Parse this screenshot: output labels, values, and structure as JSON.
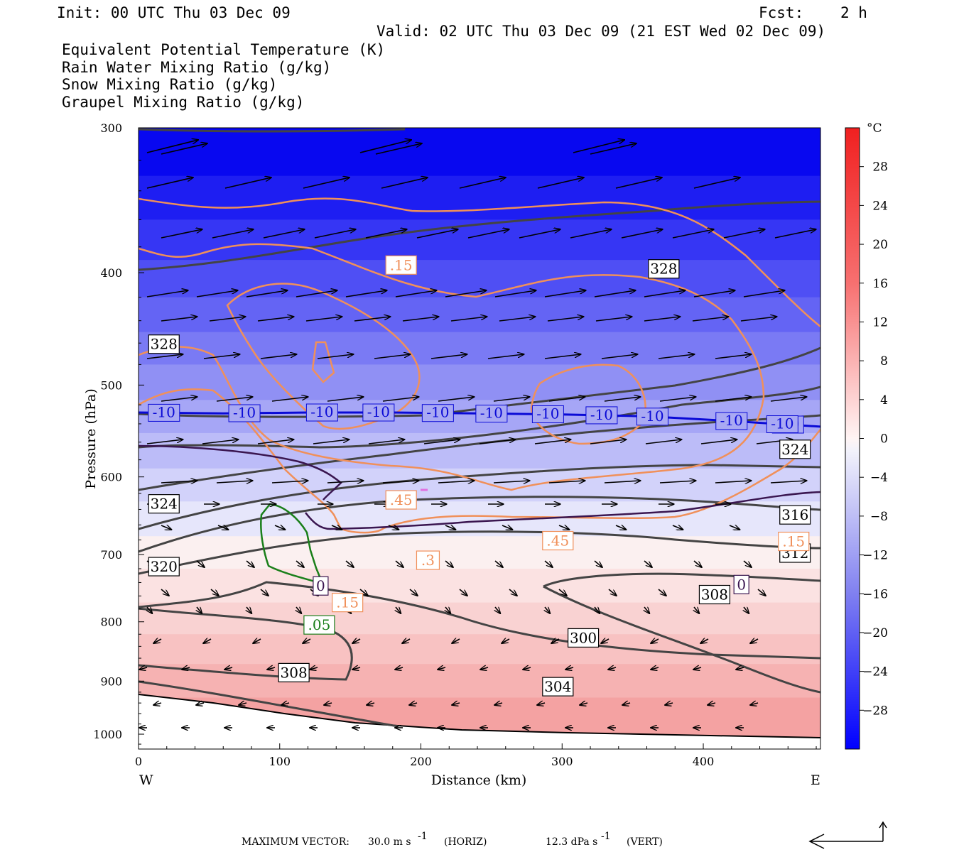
{
  "header": {
    "init": "Init: 00 UTC Thu 03 Dec 09",
    "fcst_label": "Fcst:",
    "fcst_value": "2 h",
    "valid": "Valid: 02 UTC Thu 03 Dec 09 (21 EST Wed 02 Dec 09)"
  },
  "legend": [
    {
      "text": "Equivalent Potential Temperature (K)",
      "color": "#555555"
    },
    {
      "text": "Rain Water Mixing Ratio (g/kg)",
      "color": "#1a7f1a"
    },
    {
      "text": "Snow Mixing Ratio (g/kg)",
      "color": "#f0905a"
    },
    {
      "text": "Graupel Mixing Ratio (g/kg)",
      "color": "#e070e0"
    }
  ],
  "axes": {
    "ylabel": "Pressure (hPa)",
    "xlabel": "Distance (km)",
    "west": "W",
    "east": "E",
    "y_ticks": [
      "300",
      "400",
      "500",
      "600",
      "700",
      "800",
      "900",
      "1000"
    ],
    "x_ticks": [
      "0",
      "100",
      "200",
      "300",
      "400"
    ]
  },
  "colorbar": {
    "unit": "°C",
    "labels": [
      "28",
      "24",
      "20",
      "16",
      "12",
      "8",
      "4",
      "0",
      "−4",
      "−8",
      "−12",
      "−16",
      "−20",
      "−24",
      "−28"
    ]
  },
  "footer": {
    "max_vector": "MAXIMUM VECTOR:",
    "horiz_value": "30.0 m s",
    "horiz_unit": "(HORIZ)",
    "vert_value": "12.3 dPa s",
    "vert_unit": "(VERT)",
    "exp": "-1"
  },
  "chart_data": {
    "type": "contour cross-section",
    "x_range_km": [
      0,
      483
    ],
    "y_range_hpa": [
      300,
      1030
    ],
    "y_scale": "log",
    "fill_field": "temperature (°C)",
    "fill_range": [
      -32,
      32
    ],
    "theta_e_labels": [
      {
        "text": "328",
        "x": 18,
        "p": 461
      },
      {
        "text": "328",
        "x": 372,
        "p": 397
      },
      {
        "text": "324",
        "x": 18,
        "p": 633
      },
      {
        "text": "324",
        "x": 465,
        "p": 568
      },
      {
        "text": "320",
        "x": 18,
        "p": 717
      },
      {
        "text": "316",
        "x": 465,
        "p": 647
      },
      {
        "text": "312",
        "x": 465,
        "p": 698
      },
      {
        "text": "308",
        "x": 408,
        "p": 758
      },
      {
        "text": "308",
        "x": 110,
        "p": 885
      },
      {
        "text": "304",
        "x": 297,
        "p": 910
      },
      {
        "text": "300",
        "x": 315,
        "p": 826
      }
    ],
    "snow_labels": [
      {
        "text": ".15",
        "x": 186,
        "p": 394
      },
      {
        "text": ".45",
        "x": 186,
        "p": 628
      },
      {
        "text": ".45",
        "x": 297,
        "p": 681
      },
      {
        "text": ".3",
        "x": 205,
        "p": 708
      },
      {
        "text": ".15",
        "x": 148,
        "p": 770
      },
      {
        "text": ".15",
        "x": 464,
        "p": 682
      }
    ],
    "rain_labels": [
      {
        "text": ".05",
        "x": 128,
        "p": 805
      }
    ],
    "temp_labels": [
      {
        "text": "0",
        "x": 129,
        "p": 745
      },
      {
        "text": "0",
        "x": 427,
        "p": 743
      }
    ],
    "isotherm_minus10": {
      "label": "-10",
      "points": [
        [
          0,
          528
        ],
        [
          60,
          529
        ],
        [
          120,
          528
        ],
        [
          180,
          528
        ],
        [
          240,
          529
        ],
        [
          300,
          530
        ],
        [
          360,
          532
        ],
        [
          420,
          537
        ],
        [
          483,
          543
        ]
      ]
    }
  }
}
